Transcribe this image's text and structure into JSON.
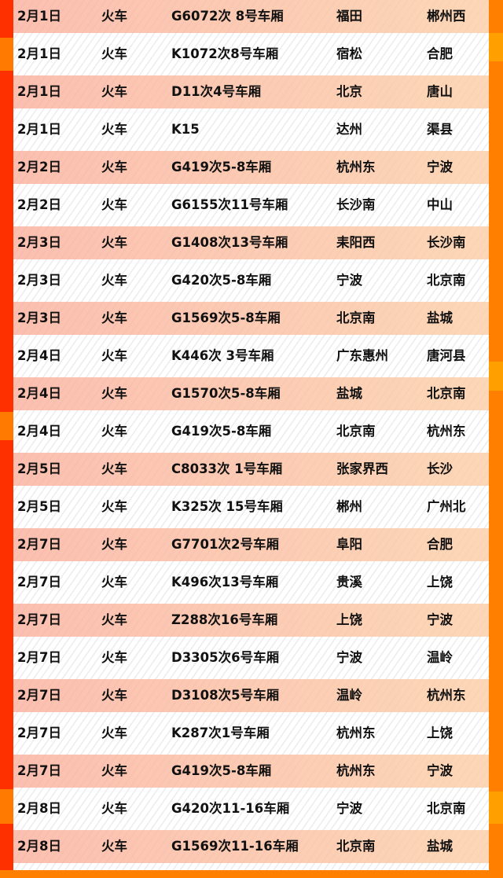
{
  "colors": {
    "left_border": "#ff3000",
    "right_border": "#ff7f00",
    "row_shade_left": "#fcc0b0",
    "row_shade_right": "#fdd8b8"
  },
  "rows": [
    [
      "2月1日",
      "火车",
      "G6072次 8号车厢",
      "福田",
      "郴州西"
    ],
    [
      "2月1日",
      "火车",
      "K1072次8号车厢",
      "宿松",
      "合肥"
    ],
    [
      "2月1日",
      "火车",
      "D11次4号车厢",
      "北京",
      "唐山"
    ],
    [
      "2月1日",
      "火车",
      "K15",
      "达州",
      "渠县"
    ],
    [
      "2月2日",
      "火车",
      "G419次5-8车厢",
      "杭州东",
      "宁波"
    ],
    [
      "2月2日",
      "火车",
      "G6155次11号车厢",
      "长沙南",
      "中山"
    ],
    [
      "2月3日",
      "火车",
      "G1408次13号车厢",
      "耒阳西",
      "长沙南"
    ],
    [
      "2月3日",
      "火车",
      "G420次5-8车厢",
      "宁波",
      "北京南"
    ],
    [
      "2月3日",
      "火车",
      "G1569次5-8车厢",
      "北京南",
      "盐城"
    ],
    [
      "2月4日",
      "火车",
      "K446次 3号车厢",
      "广东惠州",
      "唐河县"
    ],
    [
      "2月4日",
      "火车",
      "G1570次5-8车厢",
      "盐城",
      "北京南"
    ],
    [
      "2月4日",
      "火车",
      "G419次5-8车厢",
      "北京南",
      "杭州东"
    ],
    [
      "2月5日",
      "火车",
      "C8033次 1号车厢",
      "张家界西",
      "长沙"
    ],
    [
      "2月5日",
      "火车",
      "K325次 15号车厢",
      "郴州",
      "广州北"
    ],
    [
      "2月7日",
      "火车",
      "G7701次2号车厢",
      "阜阳",
      "合肥"
    ],
    [
      "2月7日",
      "火车",
      "K496次13号车厢",
      "贵溪",
      "上饶"
    ],
    [
      "2月7日",
      "火车",
      "Z288次16号车厢",
      "上饶",
      "宁波"
    ],
    [
      "2月7日",
      "火车",
      "D3305次6号车厢",
      "宁波",
      "温岭"
    ],
    [
      "2月7日",
      "火车",
      "D3108次5号车厢",
      "温岭",
      "杭州东"
    ],
    [
      "2月7日",
      "火车",
      "K287次1号车厢",
      "杭州东",
      "上饶"
    ],
    [
      "2月7日",
      "火车",
      "G419次5-8车厢",
      "杭州东",
      "宁波"
    ],
    [
      "2月8日",
      "火车",
      "G420次11-16车厢",
      "宁波",
      "北京南"
    ],
    [
      "2月8日",
      "火车",
      "G1569次11-16车厢",
      "北京南",
      "盐城"
    ]
  ]
}
